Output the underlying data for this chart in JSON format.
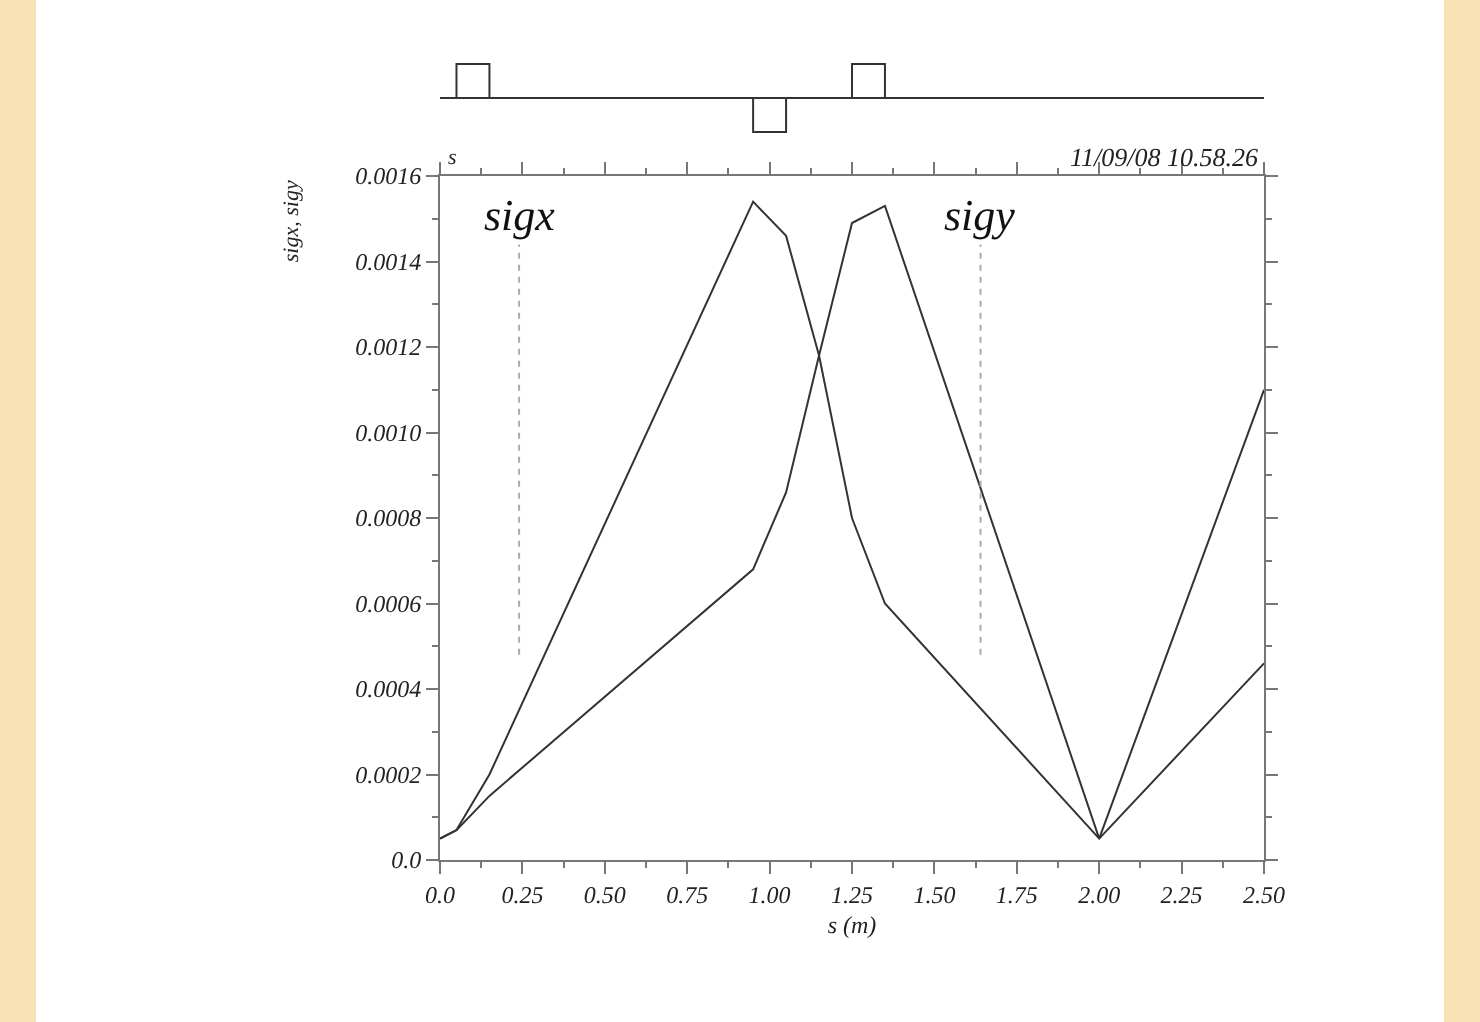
{
  "chart_data": {
    "type": "line",
    "xlabel": "s (m)",
    "ylabel": "sigx, sigy",
    "annotations": [
      "s",
      "11/09/08 10.58.26"
    ],
    "xlim": [
      0,
      2.5
    ],
    "xticks": [
      {
        "value": 0,
        "label": "0.0"
      },
      {
        "value": 0.25,
        "label": "0.25"
      },
      {
        "value": 0.5,
        "label": "0.50"
      },
      {
        "value": 0.75,
        "label": "0.75"
      },
      {
        "value": 1,
        "label": "1.00"
      },
      {
        "value": 1.25,
        "label": "1.25"
      },
      {
        "value": 1.5,
        "label": "1.50"
      },
      {
        "value": 1.75,
        "label": "1.75"
      },
      {
        "value": 2,
        "label": "2.00"
      },
      {
        "value": 2.25,
        "label": "2.25"
      },
      {
        "value": 2.5,
        "label": "2.50"
      }
    ],
    "ylim": [
      0,
      0.0016
    ],
    "yticks": [
      {
        "value": 0,
        "label": "0.0"
      },
      0.0002,
      0.0004,
      0.0006,
      0.0008,
      {
        "value": 0.001,
        "label": "0.0010"
      },
      0.0012,
      0.0014,
      0.0016
    ],
    "grid": false,
    "line_style": "solid",
    "series": [
      {
        "color": "#333333",
        "x": [
          0,
          0.05,
          0.15,
          0.95,
          1.05,
          1.15,
          1.25,
          1.35,
          2.0,
          2.5
        ],
        "values": [
          5e-05,
          7e-05,
          0.0002,
          0.00154,
          0.00146,
          0.00118,
          0.0008,
          0.0006,
          5e-05,
          0.00046
        ]
      },
      {
        "color": "#333333",
        "x": [
          0,
          0.05,
          0.15,
          0.95,
          1.05,
          1.15,
          1.25,
          1.35,
          2.0,
          2.5
        ],
        "values": [
          5e-05,
          7e-05,
          0.00015,
          0.00068,
          0.00086,
          0.00118,
          0.00149,
          0.00153,
          5e-05,
          0.0011
        ]
      }
    ],
    "ref_lines": [
      {
        "axis": "x",
        "value": 0.24,
        "label": "sigx",
        "color": "#aaaaaa",
        "line_style": "dotted"
      },
      {
        "axis": "x",
        "value": 1.64,
        "label": "sigy",
        "color": "#aaaaaa",
        "line_style": "dotted"
      }
    ]
  }
}
